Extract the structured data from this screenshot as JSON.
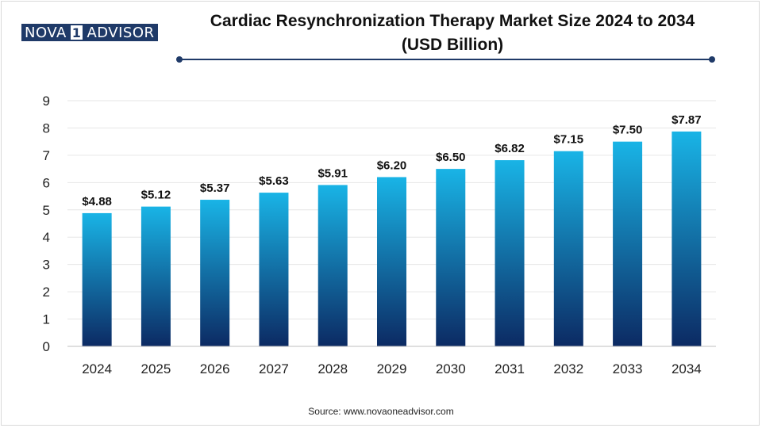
{
  "brand": {
    "logo_part1": "NOVA",
    "logo_part2": "1",
    "logo_part3": "ADVISOR",
    "primary_color": "#1f3a68"
  },
  "source": "Source: www.novaoneadvisor.com",
  "chart_data": {
    "type": "bar",
    "title": "Cardiac Resynchronization Therapy Market Size 2024 to 2034",
    "subtitle": "(USD Billion)",
    "xlabel": "",
    "ylabel": "",
    "categories": [
      "2024",
      "2025",
      "2026",
      "2027",
      "2028",
      "2029",
      "2030",
      "2031",
      "2032",
      "2033",
      "2034"
    ],
    "values": [
      4.88,
      5.12,
      5.37,
      5.63,
      5.91,
      6.2,
      6.5,
      6.82,
      7.15,
      7.5,
      7.87
    ],
    "data_labels": [
      "$4.88",
      "$5.12",
      "$5.37",
      "$5.63",
      "$5.91",
      "$6.20",
      "$6.50",
      "$6.82",
      "$7.15",
      "$7.50",
      "$7.87"
    ],
    "ylim": [
      0,
      9
    ],
    "yticks": [
      "0",
      "1",
      "2",
      "3",
      "4",
      "5",
      "6",
      "7",
      "8",
      "9"
    ],
    "grid": true,
    "legend": "none",
    "bar_gradient": {
      "top": "#19b4e6",
      "bottom": "#0c2a63"
    }
  }
}
